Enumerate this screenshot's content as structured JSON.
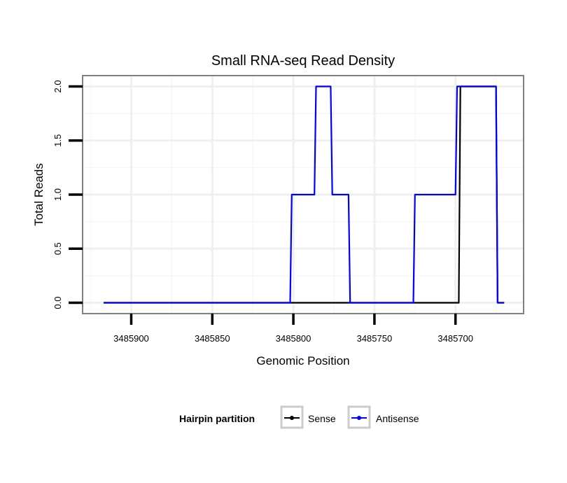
{
  "chart_data": {
    "type": "line",
    "title": "Small RNA-seq Read Density",
    "xlabel": "Genomic Position",
    "ylabel": "Total Reads",
    "xlim": [
      3485930,
      3485658
    ],
    "x_reversed": true,
    "ylim": [
      -0.1,
      2.1
    ],
    "xticks": [
      3485900,
      3485850,
      3485800,
      3485750,
      3485700
    ],
    "xtick_labels": [
      "3485900",
      "3485850",
      "3485800",
      "3485750",
      "3485700"
    ],
    "yticks": [
      0,
      0.5,
      1,
      1.5,
      2
    ],
    "ytick_labels": [
      "0.0",
      "0.5",
      "1.0",
      "1.5",
      "2.0"
    ],
    "grid": true,
    "legend": {
      "title": "Hairpin partition",
      "placement": "bottom"
    },
    "series": [
      {
        "name": "Sense",
        "color": "#000000",
        "points": [
          [
            3485917,
            0
          ],
          [
            3485698,
            0
          ],
          [
            3485697,
            2
          ],
          [
            3485675,
            2
          ],
          [
            3485674,
            0
          ],
          [
            3485670,
            0
          ]
        ]
      },
      {
        "name": "Antisense",
        "color": "#0000ff",
        "points": [
          [
            3485917,
            0
          ],
          [
            3485802,
            0
          ],
          [
            3485801,
            1
          ],
          [
            3485787,
            1
          ],
          [
            3485786,
            2
          ],
          [
            3485777,
            2
          ],
          [
            3485776,
            1
          ],
          [
            3485766,
            1
          ],
          [
            3485765,
            0
          ],
          [
            3485726,
            0
          ],
          [
            3485725,
            1
          ],
          [
            3485700,
            1
          ],
          [
            3485699,
            2
          ],
          [
            3485675,
            2
          ],
          [
            3485674,
            0
          ],
          [
            3485670,
            0
          ]
        ]
      }
    ]
  }
}
